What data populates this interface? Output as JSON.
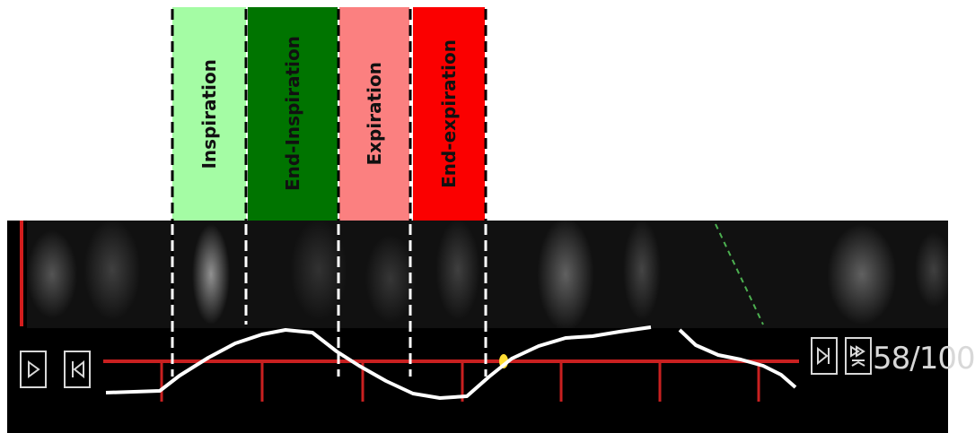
{
  "phases": [
    {
      "label": "Inspiration",
      "color": "#a4fca4"
    },
    {
      "label": "End-Inspiration",
      "color": "#007400"
    },
    {
      "label": "Expiration",
      "color": "#fb8080"
    },
    {
      "label": "End-expiration",
      "color": "#fb0000"
    }
  ],
  "player": {
    "frame_counter": "58/100",
    "buttons": [
      "play-icon",
      "step-back-icon",
      "step-forward-icon",
      "skip-end-icon"
    ]
  },
  "colors": {
    "timeline": "#c92020",
    "waveform": "#ffffff",
    "divider": "#000000",
    "marker": "#ffdd33"
  }
}
